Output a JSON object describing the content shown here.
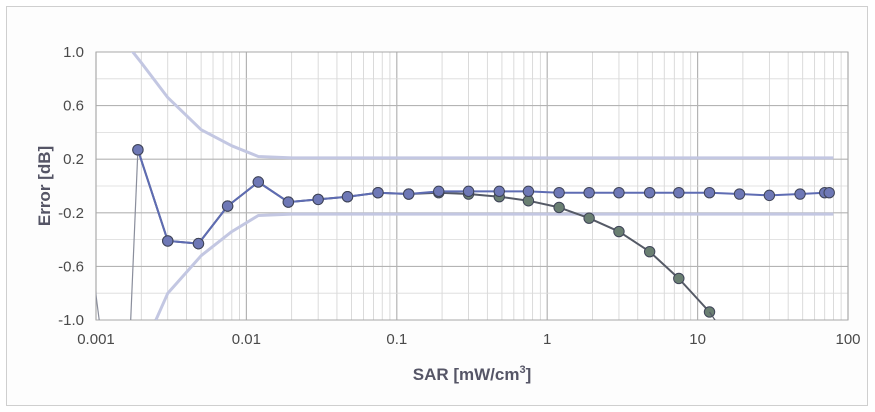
{
  "chart_data": {
    "type": "line",
    "xscale": "log",
    "xlim": [
      0.001,
      100
    ],
    "ylim": [
      -1.0,
      1.0
    ],
    "xlabel": "SAR [mW/cm",
    "xlabel_sup": "3",
    "xlabel_end": "]",
    "ylabel": "Error [dB]",
    "x_tick_labels": [
      "0.001",
      "0.01",
      "0.1",
      "1",
      "10",
      "100"
    ],
    "y_tick_labels": [
      "1.0",
      "0.6",
      "0.2",
      "-0.2",
      "-0.6",
      "-1.0"
    ],
    "grid": true,
    "series": [
      {
        "color": "#c3c7e2",
        "marker": "none",
        "x": [
          0.0017,
          0.002,
          0.003,
          0.005,
          0.008,
          0.012,
          0.02,
          0.05,
          0.1,
          1,
          10,
          80
        ],
        "y": [
          1.02,
          0.92,
          0.66,
          0.42,
          0.3,
          0.22,
          0.21,
          0.21,
          0.21,
          0.21,
          0.21,
          0.21
        ]
      },
      {
        "color": "#c3c7e2",
        "marker": "none",
        "x": [
          0.0025,
          0.003,
          0.005,
          0.008,
          0.012,
          0.02,
          0.05,
          0.1,
          1,
          10,
          80
        ],
        "y": [
          -1.0,
          -0.8,
          -0.52,
          -0.34,
          -0.22,
          -0.21,
          -0.21,
          -0.21,
          -0.21,
          -0.21,
          -0.21
        ]
      },
      {
        "color": "#8a8e9c",
        "marker": "none",
        "x": [
          0.00095,
          0.00105
        ],
        "y": [
          -0.62,
          -1.0
        ]
      },
      {
        "color": "#8a8e9c",
        "marker": "none",
        "x": [
          0.0017,
          0.0019
        ],
        "y": [
          -1.0,
          0.27
        ]
      },
      {
        "color": "#555a66",
        "marker": "circle",
        "marker_color": "#6a7f72",
        "x": [
          0.0019,
          0.003,
          0.0048,
          0.0075,
          0.012,
          0.019,
          0.03,
          0.047,
          0.075,
          0.12,
          0.19,
          0.3,
          0.48,
          0.75,
          1.2,
          1.9,
          3.0,
          4.8,
          7.5,
          12
        ],
        "y": [
          0.27,
          -0.41,
          -0.43,
          -0.15,
          0.03,
          -0.12,
          -0.1,
          -0.08,
          -0.05,
          -0.06,
          -0.05,
          -0.06,
          -0.08,
          -0.11,
          -0.16,
          -0.24,
          -0.34,
          -0.49,
          -0.69,
          -0.94
        ]
      },
      {
        "color": "#555a66",
        "marker": "none",
        "x": [
          12,
          14
        ],
        "y": [
          -0.94,
          -1.05
        ]
      },
      {
        "color": "#5e6cb3",
        "marker": "circle",
        "marker_color": "#6e78b6",
        "x": [
          0.0019,
          0.003,
          0.0048,
          0.0075,
          0.012,
          0.019,
          0.03,
          0.047,
          0.075,
          0.12,
          0.19,
          0.3,
          0.48,
          0.75,
          1.2,
          1.9,
          3.0,
          4.8,
          7.5,
          12,
          19,
          30,
          48,
          70,
          75
        ],
        "y": [
          0.27,
          -0.41,
          -0.43,
          -0.15,
          0.03,
          -0.12,
          -0.1,
          -0.08,
          -0.05,
          -0.06,
          -0.04,
          -0.04,
          -0.04,
          -0.04,
          -0.05,
          -0.05,
          -0.05,
          -0.05,
          -0.05,
          -0.05,
          -0.06,
          -0.07,
          -0.06,
          -0.05,
          -0.05
        ]
      }
    ]
  }
}
